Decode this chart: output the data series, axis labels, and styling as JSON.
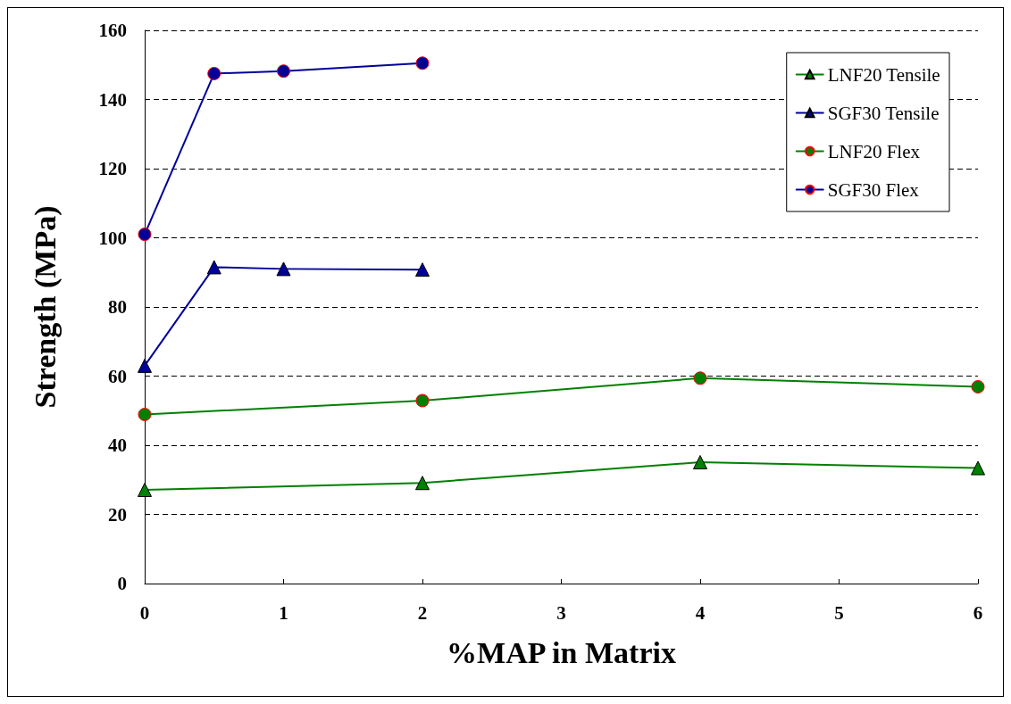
{
  "chart_data": {
    "type": "line",
    "xlabel": "%MAP in Matrix",
    "ylabel": "Strength (MPa)",
    "xlim": [
      0,
      6
    ],
    "xticks": [
      0,
      1,
      2,
      3,
      4,
      5,
      6
    ],
    "ylim": [
      0,
      160
    ],
    "yticks": [
      0,
      20,
      40,
      60,
      80,
      100,
      120,
      140,
      160
    ],
    "grid": "y",
    "legend": "top right",
    "series": [
      {
        "name": "LNF20 Tensile",
        "color": "#008000",
        "marker": "triangle",
        "x": [
          0,
          2,
          4,
          6
        ],
        "values": [
          27.1,
          29.1,
          35.1,
          33.4
        ]
      },
      {
        "name": "SGF30 Tensile",
        "color": "#000099",
        "marker": "triangle",
        "x": [
          0,
          0.5,
          1,
          2
        ],
        "values": [
          63,
          91.5,
          91,
          90.8
        ]
      },
      {
        "name": "LNF20 Flex",
        "color": "#008000",
        "marker": "circle",
        "x": [
          0,
          2,
          4,
          6
        ],
        "values": [
          48.9,
          52.9,
          59.4,
          56.9
        ]
      },
      {
        "name": "SGF30 Flex",
        "color": "#000099",
        "marker": "circle",
        "x": [
          0,
          0.5,
          1,
          2
        ],
        "values": [
          101,
          147.5,
          148.2,
          150.5
        ]
      }
    ]
  }
}
